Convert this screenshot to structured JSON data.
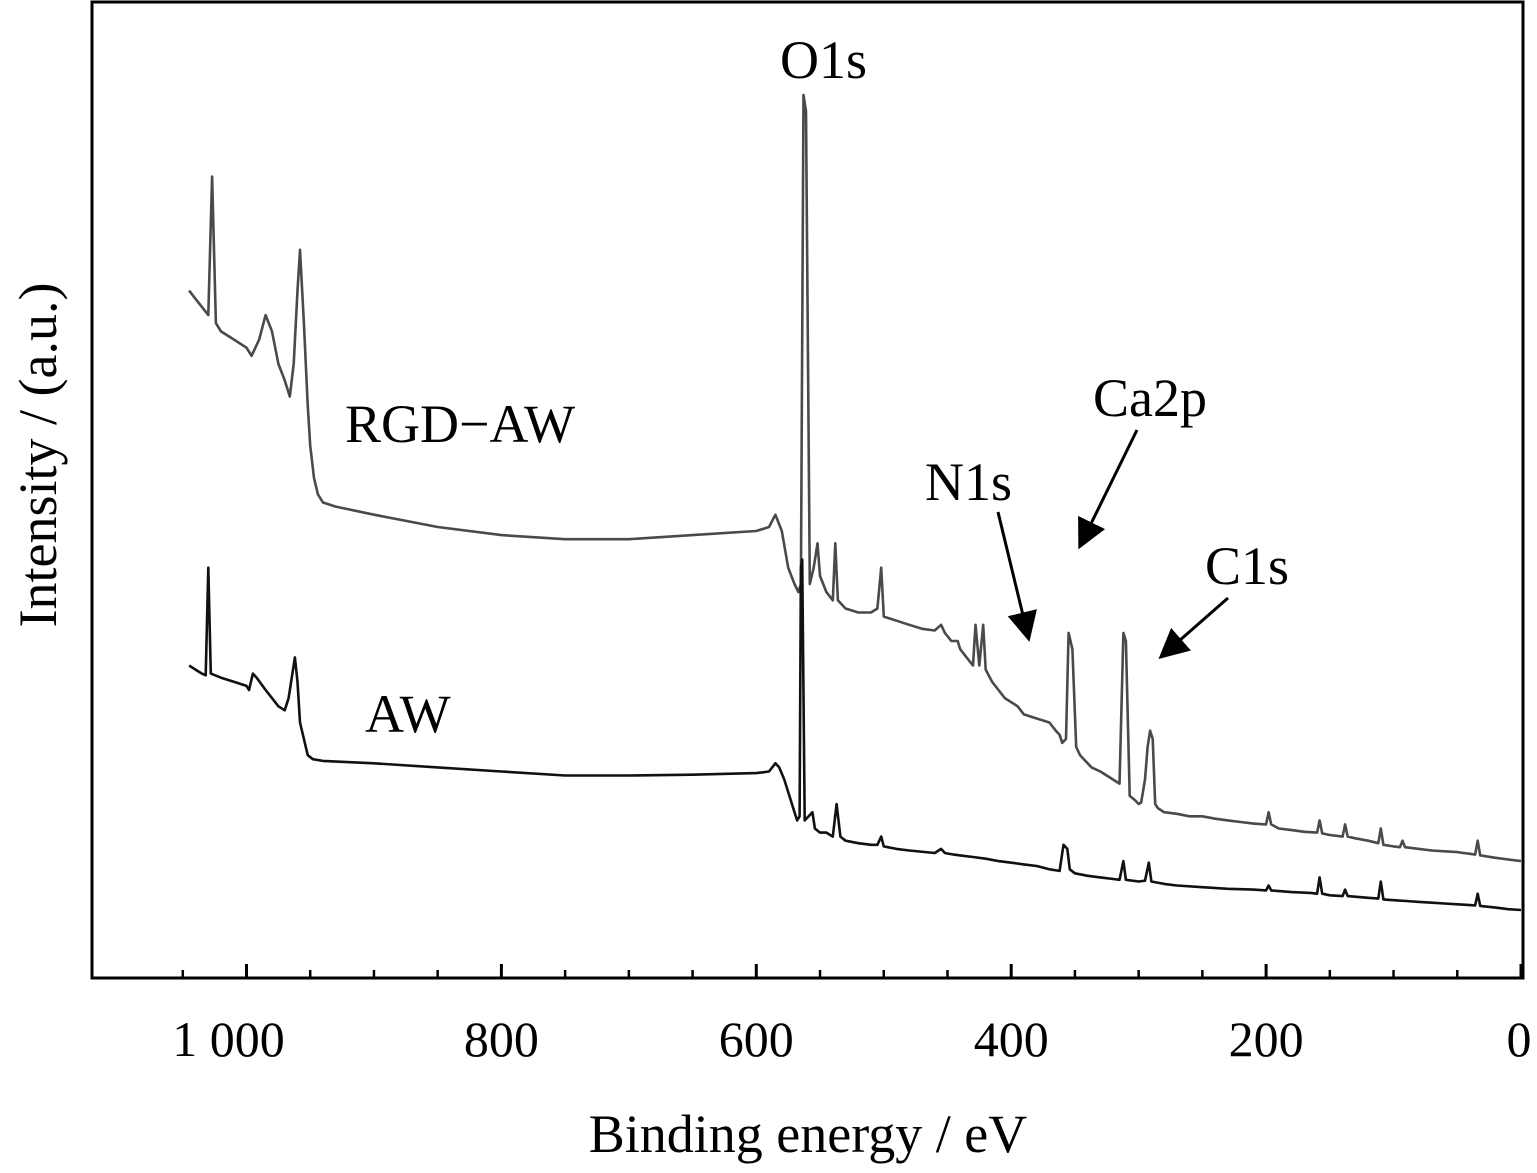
{
  "chart_data": {
    "type": "line",
    "title": "",
    "xlabel": "Binding energy / eV",
    "ylabel": "Intensity / (a.u.)",
    "x_reversed": true,
    "xlim": [
      1075,
      0
    ],
    "x_ticks": [
      1000,
      800,
      600,
      400,
      200,
      0
    ],
    "x_tick_labels": [
      "1 000",
      "800",
      "600",
      "400",
      "200",
      "0"
    ],
    "y_ticks_shown": false,
    "grid": false,
    "legend": "none (series labelled directly on plot)",
    "series": [
      {
        "name": "RGD−AW",
        "color": "#4a4a4a",
        "points": [
          [
            1045,
            0.76
          ],
          [
            1040,
            0.75
          ],
          [
            1035,
            0.74
          ],
          [
            1030,
            0.73
          ],
          [
            1027,
            0.9
          ],
          [
            1024,
            0.72
          ],
          [
            1020,
            0.71
          ],
          [
            1010,
            0.7
          ],
          [
            1000,
            0.69
          ],
          [
            996,
            0.68
          ],
          [
            990,
            0.7
          ],
          [
            985,
            0.73
          ],
          [
            980,
            0.71
          ],
          [
            975,
            0.67
          ],
          [
            970,
            0.65
          ],
          [
            966,
            0.63
          ],
          [
            963,
            0.67
          ],
          [
            960,
            0.76
          ],
          [
            958,
            0.81
          ],
          [
            955,
            0.72
          ],
          [
            952,
            0.62
          ],
          [
            950,
            0.57
          ],
          [
            947,
            0.53
          ],
          [
            944,
            0.51
          ],
          [
            940,
            0.5
          ],
          [
            930,
            0.495
          ],
          [
            900,
            0.485
          ],
          [
            850,
            0.47
          ],
          [
            800,
            0.46
          ],
          [
            750,
            0.455
          ],
          [
            700,
            0.455
          ],
          [
            650,
            0.46
          ],
          [
            600,
            0.465
          ],
          [
            590,
            0.47
          ],
          [
            585,
            0.485
          ],
          [
            580,
            0.465
          ],
          [
            575,
            0.42
          ],
          [
            570,
            0.4
          ],
          [
            567,
            0.39
          ],
          [
            565,
            0.4
          ],
          [
            563,
            1.0
          ],
          [
            561,
            0.98
          ],
          [
            558,
            0.4
          ],
          [
            555,
            0.42
          ],
          [
            552,
            0.45
          ],
          [
            550,
            0.41
          ],
          [
            545,
            0.39
          ],
          [
            540,
            0.38
          ],
          [
            538,
            0.45
          ],
          [
            536,
            0.38
          ],
          [
            530,
            0.37
          ],
          [
            520,
            0.365
          ],
          [
            510,
            0.365
          ],
          [
            505,
            0.37
          ],
          [
            502,
            0.42
          ],
          [
            500,
            0.36
          ],
          [
            490,
            0.355
          ],
          [
            480,
            0.35
          ],
          [
            470,
            0.345
          ],
          [
            460,
            0.343
          ],
          [
            455,
            0.35
          ],
          [
            452,
            0.34
          ],
          [
            447,
            0.33
          ],
          [
            442,
            0.33
          ],
          [
            440,
            0.32
          ],
          [
            435,
            0.31
          ],
          [
            430,
            0.3
          ],
          [
            428,
            0.35
          ],
          [
            425,
            0.3
          ],
          [
            422,
            0.35
          ],
          [
            420,
            0.295
          ],
          [
            415,
            0.28
          ],
          [
            410,
            0.27
          ],
          [
            405,
            0.26
          ],
          [
            400,
            0.255
          ],
          [
            395,
            0.25
          ],
          [
            390,
            0.24
          ],
          [
            380,
            0.235
          ],
          [
            370,
            0.23
          ],
          [
            365,
            0.22
          ],
          [
            362,
            0.215
          ],
          [
            360,
            0.205
          ],
          [
            357,
            0.21
          ],
          [
            355,
            0.34
          ],
          [
            352,
            0.32
          ],
          [
            349,
            0.2
          ],
          [
            346,
            0.19
          ],
          [
            343,
            0.185
          ],
          [
            340,
            0.18
          ],
          [
            337,
            0.175
          ],
          [
            330,
            0.17
          ],
          [
            320,
            0.16
          ],
          [
            315,
            0.155
          ],
          [
            312,
            0.34
          ],
          [
            310,
            0.33
          ],
          [
            307,
            0.14
          ],
          [
            303,
            0.135
          ],
          [
            300,
            0.13
          ],
          [
            298,
            0.132
          ],
          [
            295,
            0.16
          ],
          [
            293,
            0.2
          ],
          [
            291,
            0.22
          ],
          [
            289,
            0.21
          ],
          [
            287,
            0.13
          ],
          [
            285,
            0.125
          ],
          [
            280,
            0.12
          ],
          [
            270,
            0.118
          ],
          [
            260,
            0.115
          ],
          [
            250,
            0.115
          ],
          [
            240,
            0.112
          ],
          [
            230,
            0.11
          ],
          [
            220,
            0.108
          ],
          [
            210,
            0.106
          ],
          [
            200,
            0.105
          ],
          [
            198,
            0.12
          ],
          [
            196,
            0.105
          ],
          [
            190,
            0.1
          ],
          [
            180,
            0.098
          ],
          [
            170,
            0.096
          ],
          [
            160,
            0.095
          ],
          [
            158,
            0.11
          ],
          [
            156,
            0.094
          ],
          [
            150,
            0.092
          ],
          [
            140,
            0.09
          ],
          [
            138,
            0.105
          ],
          [
            136,
            0.09
          ],
          [
            130,
            0.088
          ],
          [
            120,
            0.085
          ],
          [
            112,
            0.082
          ],
          [
            110,
            0.1
          ],
          [
            108,
            0.08
          ],
          [
            100,
            0.078
          ],
          [
            95,
            0.077
          ],
          [
            93,
            0.085
          ],
          [
            91,
            0.077
          ],
          [
            80,
            0.075
          ],
          [
            70,
            0.073
          ],
          [
            60,
            0.072
          ],
          [
            50,
            0.071
          ],
          [
            45,
            0.07
          ],
          [
            40,
            0.069
          ],
          [
            36,
            0.068
          ],
          [
            34,
            0.085
          ],
          [
            32,
            0.067
          ],
          [
            28,
            0.066
          ],
          [
            20,
            0.064
          ],
          [
            10,
            0.062
          ],
          [
            0,
            0.06
          ]
        ]
      },
      {
        "name": "AW",
        "color": "#111111",
        "points": [
          [
            1045,
            0.3
          ],
          [
            1040,
            0.295
          ],
          [
            1035,
            0.29
          ],
          [
            1032,
            0.288
          ],
          [
            1030,
            0.42
          ],
          [
            1028,
            0.29
          ],
          [
            1020,
            0.285
          ],
          [
            1010,
            0.28
          ],
          [
            1000,
            0.275
          ],
          [
            998,
            0.27
          ],
          [
            995,
            0.29
          ],
          [
            992,
            0.285
          ],
          [
            985,
            0.27
          ],
          [
            980,
            0.26
          ],
          [
            975,
            0.25
          ],
          [
            970,
            0.245
          ],
          [
            967,
            0.26
          ],
          [
            964,
            0.29
          ],
          [
            962,
            0.31
          ],
          [
            960,
            0.28
          ],
          [
            958,
            0.23
          ],
          [
            955,
            0.21
          ],
          [
            952,
            0.19
          ],
          [
            948,
            0.185
          ],
          [
            940,
            0.183
          ],
          [
            900,
            0.18
          ],
          [
            850,
            0.175
          ],
          [
            800,
            0.17
          ],
          [
            750,
            0.165
          ],
          [
            700,
            0.165
          ],
          [
            650,
            0.166
          ],
          [
            600,
            0.168
          ],
          [
            590,
            0.17
          ],
          [
            585,
            0.18
          ],
          [
            582,
            0.175
          ],
          [
            578,
            0.16
          ],
          [
            574,
            0.14
          ],
          [
            570,
            0.12
          ],
          [
            568,
            0.11
          ],
          [
            566,
            0.115
          ],
          [
            565,
            0.42
          ],
          [
            564,
            0.43
          ],
          [
            562,
            0.11
          ],
          [
            559,
            0.115
          ],
          [
            556,
            0.12
          ],
          [
            554,
            0.1
          ],
          [
            550,
            0.095
          ],
          [
            545,
            0.095
          ],
          [
            540,
            0.09
          ],
          [
            537,
            0.13
          ],
          [
            534,
            0.09
          ],
          [
            530,
            0.085
          ],
          [
            520,
            0.082
          ],
          [
            510,
            0.08
          ],
          [
            505,
            0.08
          ],
          [
            502,
            0.09
          ],
          [
            500,
            0.078
          ],
          [
            490,
            0.075
          ],
          [
            480,
            0.073
          ],
          [
            460,
            0.07
          ],
          [
            455,
            0.075
          ],
          [
            452,
            0.07
          ],
          [
            445,
            0.068
          ],
          [
            440,
            0.067
          ],
          [
            430,
            0.065
          ],
          [
            420,
            0.063
          ],
          [
            410,
            0.06
          ],
          [
            400,
            0.058
          ],
          [
            390,
            0.056
          ],
          [
            380,
            0.054
          ],
          [
            370,
            0.05
          ],
          [
            362,
            0.048
          ],
          [
            359,
            0.08
          ],
          [
            356,
            0.075
          ],
          [
            354,
            0.05
          ],
          [
            350,
            0.045
          ],
          [
            340,
            0.042
          ],
          [
            330,
            0.04
          ],
          [
            320,
            0.038
          ],
          [
            315,
            0.037
          ],
          [
            312,
            0.06
          ],
          [
            310,
            0.037
          ],
          [
            300,
            0.035
          ],
          [
            295,
            0.036
          ],
          [
            292,
            0.058
          ],
          [
            290,
            0.035
          ],
          [
            280,
            0.032
          ],
          [
            270,
            0.03
          ],
          [
            250,
            0.028
          ],
          [
            230,
            0.026
          ],
          [
            210,
            0.025
          ],
          [
            200,
            0.024
          ],
          [
            198,
            0.03
          ],
          [
            196,
            0.024
          ],
          [
            180,
            0.022
          ],
          [
            165,
            0.021
          ],
          [
            160,
            0.02
          ],
          [
            158,
            0.04
          ],
          [
            156,
            0.02
          ],
          [
            150,
            0.018
          ],
          [
            140,
            0.017
          ],
          [
            138,
            0.025
          ],
          [
            136,
            0.017
          ],
          [
            120,
            0.015
          ],
          [
            112,
            0.014
          ],
          [
            110,
            0.035
          ],
          [
            108,
            0.013
          ],
          [
            100,
            0.012
          ],
          [
            90,
            0.011
          ],
          [
            80,
            0.01
          ],
          [
            70,
            0.009
          ],
          [
            60,
            0.008
          ],
          [
            50,
            0.007
          ],
          [
            40,
            0.006
          ],
          [
            36,
            0.0055
          ],
          [
            34,
            0.02
          ],
          [
            32,
            0.005
          ],
          [
            20,
            0.003
          ],
          [
            10,
            0.001
          ],
          [
            0,
            0.0
          ]
        ]
      }
    ],
    "series_labels": {
      "rgd": "RGD−AW",
      "aw": "AW"
    },
    "annotations": {
      "o1s": "O1s",
      "n1s": "N1s",
      "ca2p": "Ca2p",
      "c1s": "C1s"
    }
  }
}
